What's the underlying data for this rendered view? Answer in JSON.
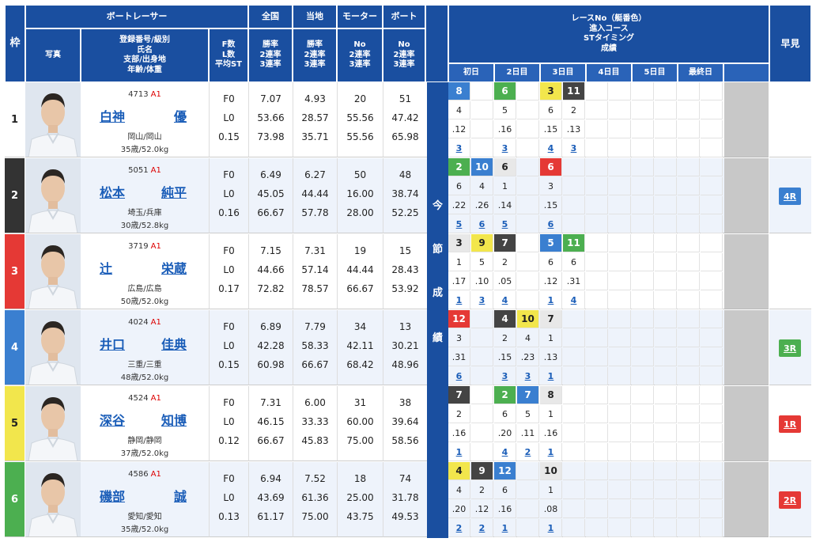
{
  "header": {
    "waku": "枠",
    "racer_group": "ボートレーサー",
    "photo": "写真",
    "racer_info": [
      "登録番号/級別",
      "氏名",
      "支部/出身地",
      "年齢/体重"
    ],
    "fl": [
      "F数",
      "L数",
      "平均ST"
    ],
    "zenkoku": "全国",
    "touchi": "当地",
    "motor": "モーター",
    "boat": "ボート",
    "rate_labels": [
      "勝率",
      "2連率",
      "3連率"
    ],
    "no_labels": [
      "No",
      "2連率",
      "3連率"
    ],
    "series_title": [
      "レースNo（艇番色）",
      "進入コース",
      "STタイミング",
      "成績"
    ],
    "days": [
      "初日",
      "2日目",
      "3日目",
      "4日目",
      "5日目",
      "最終日"
    ],
    "early": "早見",
    "vertical_label": [
      "今",
      "節",
      "成",
      "績"
    ]
  },
  "racers": [
    {
      "waku": "1",
      "waku_color": "#ffffff",
      "reg": "4713",
      "cls": "A1",
      "name": [
        "白神",
        "優"
      ],
      "branch": "岡山/岡山",
      "age": "35歳/52.0kg",
      "f": "F0",
      "l": "L0",
      "st": "0.15",
      "zen": [
        "7.07",
        "53.66",
        "73.98"
      ],
      "tou": [
        "4.93",
        "28.57",
        "35.71"
      ],
      "motor": [
        "20",
        "55.56",
        "55.56"
      ],
      "boat": [
        "51",
        "47.42",
        "65.98"
      ],
      "races": [
        {
          "no": "8",
          "color": "#3a7fd0",
          "tc": "#fff",
          "course": "4",
          "st": ".12",
          "res": "3"
        },
        {
          "no": "",
          "color": "",
          "tc": "",
          "course": "",
          "st": "",
          "res": ""
        },
        {
          "no": "6",
          "color": "#4caf50",
          "tc": "#fff",
          "course": "5",
          "st": ".16",
          "res": "3"
        },
        {
          "no": "",
          "color": "",
          "tc": "",
          "course": "",
          "st": "",
          "res": ""
        },
        {
          "no": "3",
          "color": "#f2e64c",
          "tc": "#222",
          "course": "6",
          "st": ".15",
          "res": "4"
        },
        {
          "no": "11",
          "color": "#444444",
          "tc": "#fff",
          "course": "2",
          "st": ".13",
          "res": "3"
        }
      ],
      "early": "",
      "early_color": ""
    },
    {
      "waku": "2",
      "waku_color": "#333333",
      "reg": "5051",
      "cls": "A1",
      "name": [
        "松本",
        "純平"
      ],
      "branch": "埼玉/兵庫",
      "age": "30歳/52.8kg",
      "f": "F0",
      "l": "L0",
      "st": "0.16",
      "zen": [
        "6.49",
        "45.05",
        "66.67"
      ],
      "tou": [
        "6.27",
        "44.44",
        "57.78"
      ],
      "motor": [
        "50",
        "16.00",
        "28.00"
      ],
      "boat": [
        "48",
        "38.74",
        "52.25"
      ],
      "races": [
        {
          "no": "2",
          "color": "#4caf50",
          "tc": "#fff",
          "course": "6",
          "st": ".22",
          "res": "5"
        },
        {
          "no": "10",
          "color": "#3a7fd0",
          "tc": "#fff",
          "course": "4",
          "st": ".26",
          "res": "6"
        },
        {
          "no": "6",
          "color": "#e8e8e8",
          "tc": "#222",
          "course": "1",
          "st": ".14",
          "res": "5"
        },
        {
          "no": "",
          "color": "",
          "tc": "",
          "course": "",
          "st": "",
          "res": ""
        },
        {
          "no": "6",
          "color": "#e53935",
          "tc": "#fff",
          "course": "3",
          "st": ".15",
          "res": "6"
        },
        {
          "no": "",
          "color": "",
          "tc": "",
          "course": "",
          "st": "",
          "res": ""
        }
      ],
      "early": "4R",
      "early_color": "#3a7fd0"
    },
    {
      "waku": "3",
      "waku_color": "#e53935",
      "reg": "3719",
      "cls": "A1",
      "name": [
        "辻",
        "栄蔵"
      ],
      "branch": "広島/広島",
      "age": "50歳/52.0kg",
      "f": "F0",
      "l": "L0",
      "st": "0.17",
      "zen": [
        "7.15",
        "44.66",
        "72.82"
      ],
      "tou": [
        "7.31",
        "57.14",
        "78.57"
      ],
      "motor": [
        "19",
        "44.44",
        "66.67"
      ],
      "boat": [
        "15",
        "28.43",
        "53.92"
      ],
      "races": [
        {
          "no": "3",
          "color": "#e8e8e8",
          "tc": "#222",
          "course": "1",
          "st": ".17",
          "res": "1"
        },
        {
          "no": "9",
          "color": "#f2e64c",
          "tc": "#222",
          "course": "5",
          "st": ".10",
          "res": "3"
        },
        {
          "no": "7",
          "color": "#444444",
          "tc": "#fff",
          "course": "2",
          "st": ".05",
          "res": "4"
        },
        {
          "no": "",
          "color": "",
          "tc": "",
          "course": "",
          "st": "",
          "res": ""
        },
        {
          "no": "5",
          "color": "#3a7fd0",
          "tc": "#fff",
          "course": "6",
          "st": ".12",
          "res": "1"
        },
        {
          "no": "11",
          "color": "#4caf50",
          "tc": "#fff",
          "course": "6",
          "st": ".31",
          "res": "4"
        }
      ],
      "early": "",
      "early_color": ""
    },
    {
      "waku": "4",
      "waku_color": "#3a7fd0",
      "reg": "4024",
      "cls": "A1",
      "name": [
        "井口",
        "佳典"
      ],
      "branch": "三重/三重",
      "age": "48歳/52.0kg",
      "f": "F0",
      "l": "L0",
      "st": "0.15",
      "zen": [
        "6.89",
        "42.28",
        "60.98"
      ],
      "tou": [
        "7.79",
        "58.33",
        "66.67"
      ],
      "motor": [
        "34",
        "42.11",
        "68.42"
      ],
      "boat": [
        "13",
        "30.21",
        "48.96"
      ],
      "races": [
        {
          "no": "12",
          "color": "#e53935",
          "tc": "#fff",
          "course": "3",
          "st": ".31",
          "res": "6"
        },
        {
          "no": "",
          "color": "",
          "tc": "",
          "course": "",
          "st": "",
          "res": ""
        },
        {
          "no": "4",
          "color": "#444444",
          "tc": "#fff",
          "course": "2",
          "st": ".15",
          "res": "3"
        },
        {
          "no": "10",
          "color": "#f2e64c",
          "tc": "#222",
          "course": "4",
          "st": ".23",
          "res": "3"
        },
        {
          "no": "7",
          "color": "#e8e8e8",
          "tc": "#222",
          "course": "1",
          "st": ".13",
          "res": "1"
        },
        {
          "no": "",
          "color": "",
          "tc": "",
          "course": "",
          "st": "",
          "res": ""
        }
      ],
      "early": "3R",
      "early_color": "#4caf50"
    },
    {
      "waku": "5",
      "waku_color": "#f2e64c",
      "reg": "4524",
      "cls": "A1",
      "name": [
        "深谷",
        "知博"
      ],
      "branch": "静岡/静岡",
      "age": "37歳/52.0kg",
      "f": "F0",
      "l": "L0",
      "st": "0.12",
      "zen": [
        "7.31",
        "46.15",
        "66.67"
      ],
      "tou": [
        "6.00",
        "33.33",
        "45.83"
      ],
      "motor": [
        "31",
        "60.00",
        "75.00"
      ],
      "boat": [
        "38",
        "39.64",
        "58.56"
      ],
      "races": [
        {
          "no": "7",
          "color": "#444444",
          "tc": "#fff",
          "course": "2",
          "st": ".16",
          "res": "1"
        },
        {
          "no": "",
          "color": "",
          "tc": "",
          "course": "",
          "st": "",
          "res": ""
        },
        {
          "no": "2",
          "color": "#4caf50",
          "tc": "#fff",
          "course": "6",
          "st": ".20",
          "res": "4"
        },
        {
          "no": "7",
          "color": "#3a7fd0",
          "tc": "#fff",
          "course": "5",
          "st": ".11",
          "res": "2"
        },
        {
          "no": "8",
          "color": "#e8e8e8",
          "tc": "#222",
          "course": "1",
          "st": ".16",
          "res": "1"
        },
        {
          "no": "",
          "color": "",
          "tc": "",
          "course": "",
          "st": "",
          "res": ""
        }
      ],
      "early": "1R",
      "early_color": "#e53935"
    },
    {
      "waku": "6",
      "waku_color": "#4caf50",
      "reg": "4586",
      "cls": "A1",
      "name": [
        "磯部",
        "誠"
      ],
      "branch": "愛知/愛知",
      "age": "35歳/52.0kg",
      "f": "F0",
      "l": "L0",
      "st": "0.13",
      "zen": [
        "6.94",
        "43.69",
        "61.17"
      ],
      "tou": [
        "7.52",
        "61.36",
        "75.00"
      ],
      "motor": [
        "18",
        "25.00",
        "43.75"
      ],
      "boat": [
        "74",
        "31.78",
        "49.53"
      ],
      "races": [
        {
          "no": "4",
          "color": "#f2e64c",
          "tc": "#222",
          "course": "4",
          "st": ".20",
          "res": "2"
        },
        {
          "no": "9",
          "color": "#444444",
          "tc": "#fff",
          "course": "2",
          "st": ".12",
          "res": "2"
        },
        {
          "no": "12",
          "color": "#3a7fd0",
          "tc": "#fff",
          "course": "6",
          "st": ".16",
          "res": "1"
        },
        {
          "no": "",
          "color": "",
          "tc": "",
          "course": "",
          "st": "",
          "res": ""
        },
        {
          "no": "10",
          "color": "#e8e8e8",
          "tc": "#222",
          "course": "1",
          "st": ".08",
          "res": "1"
        },
        {
          "no": "",
          "color": "",
          "tc": "",
          "course": "",
          "st": "",
          "res": ""
        }
      ],
      "early": "2R",
      "early_color": "#e53935"
    }
  ]
}
